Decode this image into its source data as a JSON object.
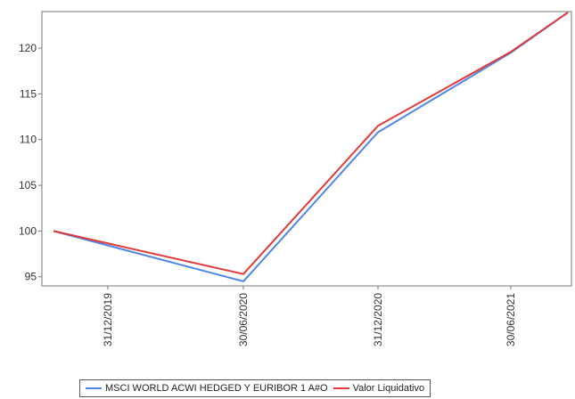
{
  "chart_data": {
    "type": "line",
    "x": [
      "31/12/2019",
      "30/06/2020",
      "31/12/2020",
      "30/06/2021"
    ],
    "yticks": [
      95,
      100,
      105,
      110,
      115,
      120
    ],
    "ylim": [
      94,
      124
    ],
    "grid": false,
    "legend_position": "bottom",
    "series": [
      {
        "name": "MSCI WORLD ACWI HEDGED Y EURIBOR 1 A#O",
        "color": "#4f86e8",
        "points": [
          [
            "31/12/2019",
            100.0
          ],
          [
            "30/06/2020",
            94.5
          ],
          [
            "31/12/2020",
            110.8
          ],
          [
            "30/06/2021",
            119.5
          ],
          [
            "end",
            123.9
          ]
        ]
      },
      {
        "name": "Valor Liquidativo",
        "color": "#e03a3a",
        "points": [
          [
            "31/12/2019",
            100.0
          ],
          [
            "30/06/2020",
            95.3
          ],
          [
            "31/12/2020",
            111.5
          ],
          [
            "30/06/2021",
            119.6
          ],
          [
            "end",
            123.9
          ]
        ]
      }
    ]
  }
}
